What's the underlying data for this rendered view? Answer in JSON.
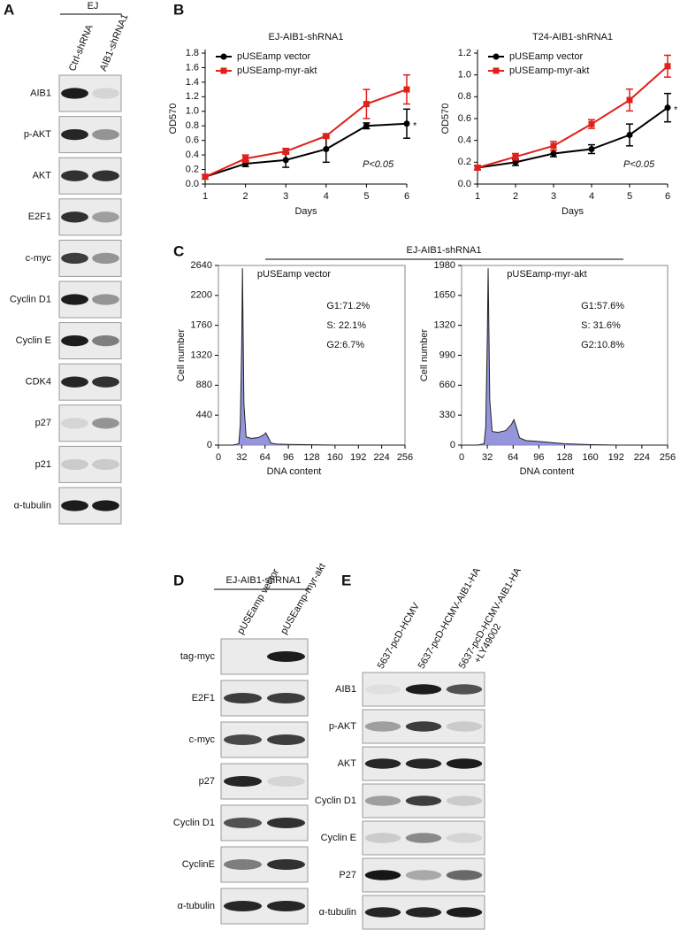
{
  "panel_labels": [
    "A",
    "B",
    "C",
    "D",
    "E"
  ],
  "panel_a": {
    "header": "EJ",
    "lanes": [
      "Ctrl-shRNA",
      "AIB1-shRNA1"
    ],
    "rows": [
      "AIB1",
      "p-AKT",
      "AKT",
      "E2F1",
      "c-myc",
      "Cyclin D1",
      "Cyclin E",
      "CDK4",
      "p27",
      "p21",
      "α-tubulin"
    ]
  },
  "panel_c_header": "EJ-AIB1-shRNA1",
  "panel_d": {
    "header": "EJ-AIB1-shRNA1",
    "lanes": [
      [
        "pUSEamp vector"
      ],
      [
        "pUSEamp-myr-akt"
      ]
    ],
    "rows": [
      "tag-myc",
      "E2F1",
      "c-myc",
      "p27",
      "Cyclin D1",
      "CyclinE",
      "α-tubulin"
    ]
  },
  "panel_e": {
    "lanes": [
      [
        "5637-pcD-HCMV"
      ],
      [
        "5637-pcD-HCMV-AIB1-HA"
      ],
      [
        "5637-pcD-HCMV-AIB1-HA",
        "+LY49002"
      ]
    ],
    "rows": [
      "AIB1",
      "p-AKT",
      "AKT",
      "Cyclin D1",
      "Cyclin E",
      "P27",
      "α-tubulin"
    ]
  },
  "chart_data": [
    {
      "type": "line",
      "title": "EJ-AIB1-shRNA1",
      "x_label": "Days",
      "y_label": "OD570",
      "x": [
        1,
        2,
        3,
        4,
        5,
        6
      ],
      "xlim": [
        1,
        6
      ],
      "xticks": [
        1,
        2,
        3,
        4,
        5,
        6
      ],
      "ylim": [
        0,
        1.8
      ],
      "yticks": [
        {
          "value": 0,
          "label": "0.0"
        },
        0.2,
        0.4,
        0.6,
        0.8,
        {
          "value": 1,
          "label": "1.0"
        },
        1.2,
        1.4,
        1.6,
        1.8
      ],
      "series": [
        {
          "name": "pUSEamp vector",
          "color": "#000000",
          "marker": "circle",
          "values": [
            0.1,
            0.28,
            0.33,
            0.48,
            0.8,
            0.83
          ],
          "errors": [
            0.03,
            0.04,
            0.1,
            0.18,
            0.04,
            0.2
          ]
        },
        {
          "name": "pUSEamp-myr-akt",
          "color": "#e0201b",
          "marker": "square",
          "values": [
            0.1,
            0.35,
            0.45,
            0.66,
            1.1,
            1.3
          ],
          "errors": [
            0.03,
            0.05,
            0.04,
            0.03,
            0.2,
            0.2
          ]
        }
      ],
      "annotations": [
        "*",
        "P<0.05"
      ]
    },
    {
      "type": "line",
      "title": "T24-AIB1-shRNA1",
      "x_label": "Days",
      "y_label": "OD570",
      "x": [
        1,
        2,
        3,
        4,
        5,
        6
      ],
      "xlim": [
        1,
        6
      ],
      "xticks": [
        1,
        2,
        3,
        4,
        5,
        6
      ],
      "ylim": [
        0,
        1.2
      ],
      "yticks": [
        {
          "value": 0,
          "label": "0.0"
        },
        0.2,
        0.4,
        0.6,
        0.8,
        {
          "value": 1,
          "label": "1.0"
        },
        1.2
      ],
      "series": [
        {
          "name": "pUSEamp vector",
          "color": "#000000",
          "marker": "circle",
          "values": [
            0.15,
            0.2,
            0.28,
            0.32,
            0.45,
            0.7
          ],
          "errors": [
            0.02,
            0.03,
            0.03,
            0.04,
            0.1,
            0.13
          ]
        },
        {
          "name": "pUSEamp-myr-akt",
          "color": "#e0201b",
          "marker": "square",
          "values": [
            0.15,
            0.25,
            0.35,
            0.55,
            0.77,
            1.08
          ],
          "errors": [
            0.02,
            0.03,
            0.04,
            0.04,
            0.1,
            0.1
          ]
        }
      ],
      "annotations": [
        "*",
        "P<0.05"
      ]
    },
    {
      "type": "area",
      "title": "pUSEamp vector",
      "x_label": "DNA content",
      "y_label": "Cell number",
      "color": "#8a8ad8",
      "x": [
        0,
        20,
        28,
        30,
        32,
        33,
        35,
        38,
        45,
        55,
        62,
        65,
        68,
        72,
        80,
        96,
        128,
        160,
        192,
        224,
        256
      ],
      "values": [
        0,
        0,
        20,
        300,
        1500,
        2600,
        600,
        120,
        100,
        110,
        150,
        180,
        120,
        30,
        15,
        10,
        5,
        0,
        0,
        0,
        0
      ],
      "xlim": [
        0,
        256
      ],
      "xticks": [
        0,
        32,
        64,
        96,
        128,
        160,
        192,
        224,
        256
      ],
      "ylim": [
        0,
        2640
      ],
      "yticks": [
        0,
        440,
        880,
        1320,
        1760,
        2200,
        2640
      ],
      "annotations": [
        "G1:71.2%",
        "S: 22.1%",
        "G2:6.7%"
      ]
    },
    {
      "type": "area",
      "title": "pUSEamp-myr-akt",
      "x_label": "DNA content",
      "y_label": "Cell number",
      "color": "#8a8ad8",
      "x": [
        0,
        20,
        28,
        30,
        32,
        33,
        35,
        38,
        45,
        55,
        62,
        65,
        68,
        72,
        80,
        96,
        128,
        160,
        192,
        224,
        256
      ],
      "values": [
        0,
        0,
        15,
        200,
        1200,
        1950,
        500,
        150,
        140,
        160,
        230,
        280,
        200,
        80,
        50,
        40,
        15,
        5,
        0,
        0,
        0
      ],
      "xlim": [
        0,
        256
      ],
      "xticks": [
        0,
        32,
        64,
        96,
        128,
        160,
        192,
        224,
        256
      ],
      "ylim": [
        0,
        1980
      ],
      "yticks": [
        0,
        330,
        660,
        990,
        1320,
        1650,
        1980
      ],
      "annotations": [
        "G1:57.6%",
        "S: 31.6%",
        "G2:10.8%"
      ]
    }
  ]
}
